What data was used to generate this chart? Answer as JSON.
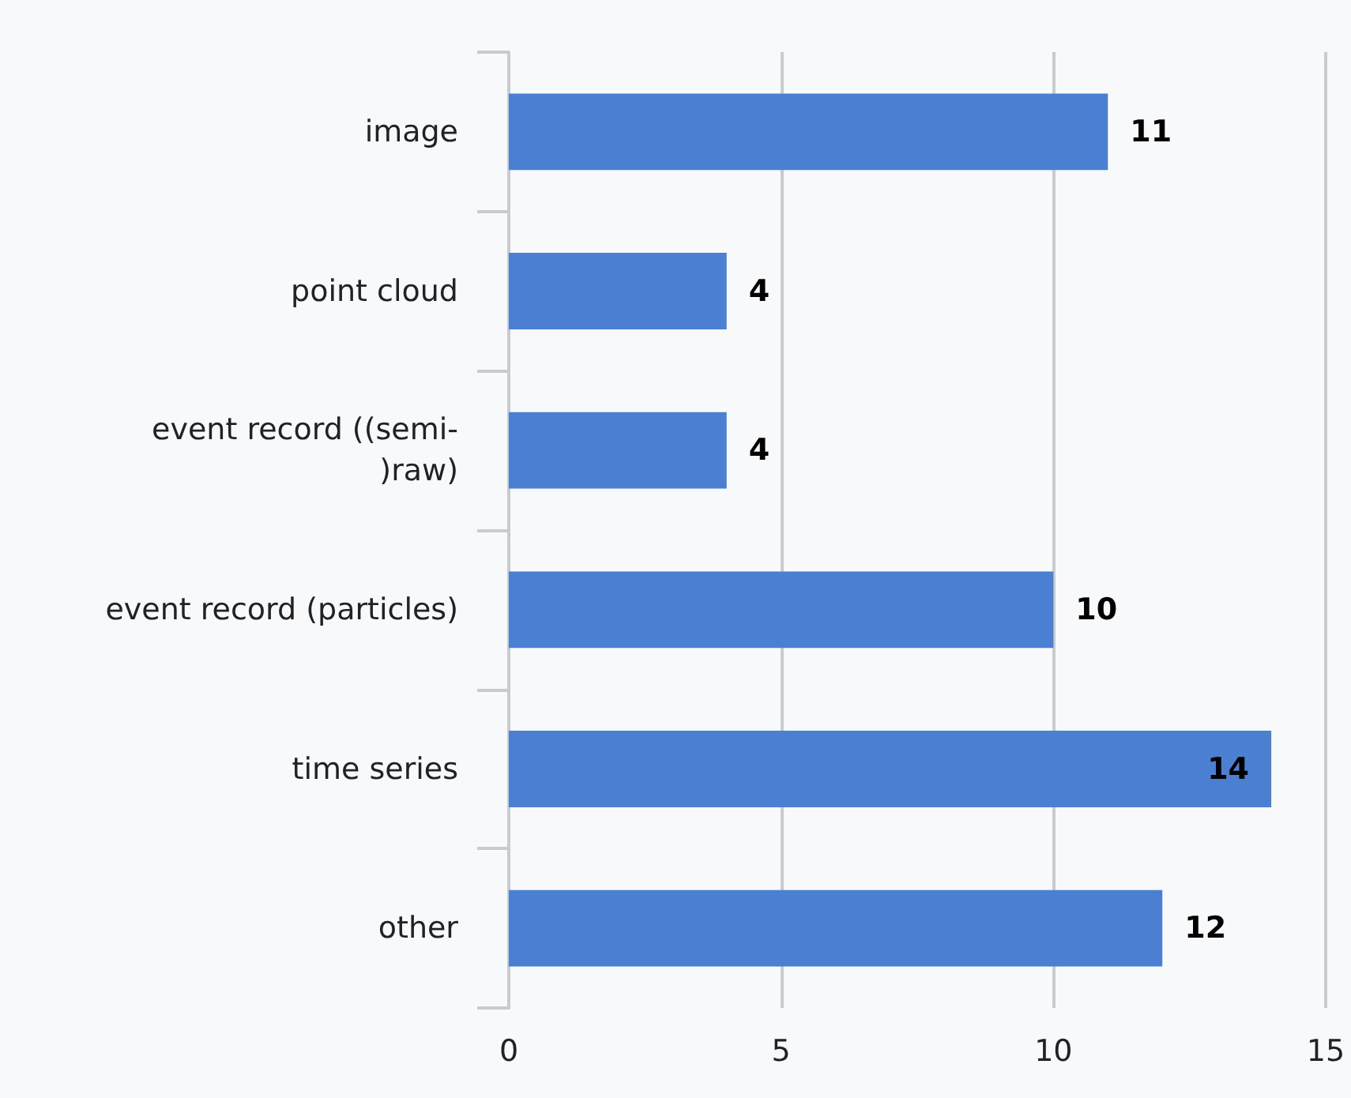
{
  "chart_data": {
    "type": "bar",
    "orientation": "horizontal",
    "categories": [
      "image",
      "point cloud",
      "event record ((semi-)raw)",
      "event record (particles)",
      "time series",
      "other"
    ],
    "values": [
      11,
      4,
      4,
      10,
      14,
      12
    ],
    "color": "#4a7fd1",
    "xlim": [
      0,
      15
    ],
    "xticks": [
      0,
      5,
      10,
      15
    ],
    "grid": "x",
    "data_labels": true
  }
}
